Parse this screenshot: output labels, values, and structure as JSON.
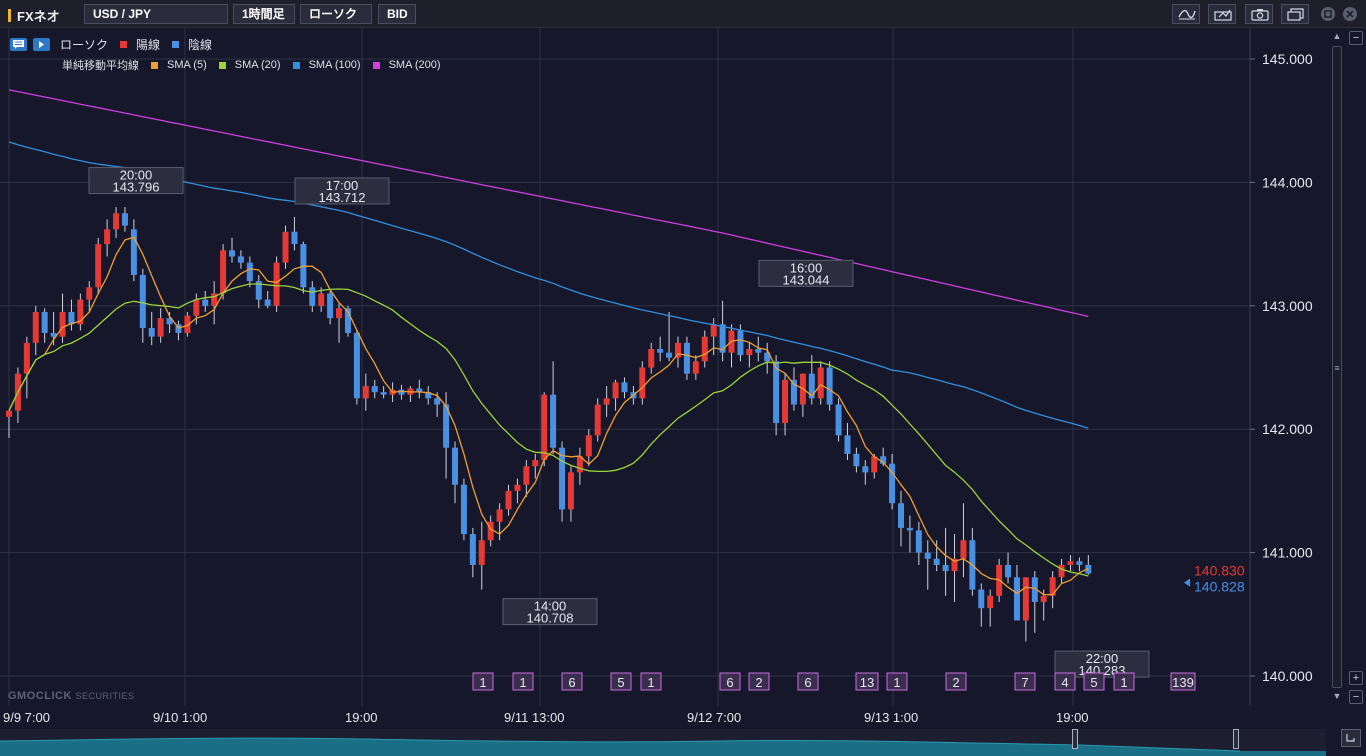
{
  "topbar": {
    "brand": "FXネオ",
    "pair": "USD / JPY",
    "timeframe": "1時間足",
    "chart_type": "ローソク",
    "price_type": "BID"
  },
  "legend": {
    "candle": "ローソク",
    "up": "陽線",
    "down": "陰線",
    "sma_group": "単純移動平均線",
    "sma": [
      {
        "label": "SMA (5)",
        "color": "#f0a030"
      },
      {
        "label": "SMA (20)",
        "color": "#9cd23a"
      },
      {
        "label": "SMA (100)",
        "color": "#2f8fe0"
      },
      {
        "label": "SMA (200)",
        "color": "#d23ce0"
      }
    ],
    "up_color": "#e53935",
    "down_color": "#4a90e2"
  },
  "watermark": {
    "brand": "GMOCLICK",
    "suffix": "SECURITIES"
  },
  "chart_data": {
    "type": "candlestick",
    "pair": "USD/JPY",
    "ylim": [
      139.75,
      145.25
    ],
    "yticks": [
      "145.000",
      "144.000",
      "143.000",
      "142.000",
      "141.000",
      "140.000"
    ],
    "xticks": [
      "9/9 7:00",
      "9/10 1:00",
      "19:00",
      "9/11 13:00",
      "9/12 7:00",
      "9/13 1:00",
      "19:00"
    ],
    "annotations": [
      {
        "time": "20:00",
        "price": "143.796"
      },
      {
        "time": "17:00",
        "price": "143.712"
      },
      {
        "time": "16:00",
        "price": "143.044"
      },
      {
        "time": "14:00",
        "price": "140.708"
      },
      {
        "time": "22:00",
        "price": "140.283"
      }
    ],
    "last_ask": "140.830",
    "last_bid": "140.828",
    "events": [
      "1",
      "1",
      "6",
      "5",
      "1",
      "6",
      "2",
      "6",
      "13",
      "1",
      "2",
      "7",
      "4",
      "5",
      "1",
      "139"
    ],
    "candles": [
      [
        142.1,
        142.15,
        141.93,
        142.15
      ],
      [
        142.15,
        142.5,
        142.05,
        142.45
      ],
      [
        142.45,
        142.75,
        142.25,
        142.7
      ],
      [
        142.7,
        143.0,
        142.6,
        142.95
      ],
      [
        142.95,
        142.98,
        142.7,
        142.78
      ],
      [
        142.78,
        142.95,
        142.68,
        142.75
      ],
      [
        142.75,
        143.1,
        142.7,
        142.95
      ],
      [
        142.95,
        143.05,
        142.8,
        142.85
      ],
      [
        142.85,
        143.1,
        142.8,
        143.05
      ],
      [
        143.05,
        143.2,
        142.95,
        143.15
      ],
      [
        143.15,
        143.55,
        143.1,
        143.5
      ],
      [
        143.5,
        143.7,
        143.4,
        143.62
      ],
      [
        143.62,
        143.8,
        143.55,
        143.75
      ],
      [
        143.75,
        143.8,
        143.6,
        143.65
      ],
      [
        143.62,
        143.7,
        143.2,
        143.25
      ],
      [
        143.25,
        143.3,
        142.7,
        142.82
      ],
      [
        142.82,
        142.95,
        142.68,
        142.75
      ],
      [
        142.75,
        142.98,
        142.7,
        142.9
      ],
      [
        142.9,
        142.95,
        142.78,
        142.85
      ],
      [
        142.85,
        142.88,
        142.72,
        142.78
      ],
      [
        142.78,
        142.95,
        142.75,
        142.92
      ],
      [
        142.92,
        143.1,
        142.85,
        143.05
      ],
      [
        143.05,
        143.12,
        142.95,
        143.0
      ],
      [
        143.0,
        143.2,
        142.85,
        143.1
      ],
      [
        143.1,
        143.5,
        143.05,
        143.45
      ],
      [
        143.45,
        143.55,
        143.35,
        143.4
      ],
      [
        143.4,
        143.45,
        143.3,
        143.35
      ],
      [
        143.35,
        143.4,
        143.15,
        143.2
      ],
      [
        143.2,
        143.25,
        142.98,
        143.05
      ],
      [
        143.05,
        143.12,
        142.98,
        143.0
      ],
      [
        143.0,
        143.4,
        142.95,
        143.35
      ],
      [
        143.35,
        143.65,
        143.3,
        143.6
      ],
      [
        143.6,
        143.72,
        143.45,
        143.5
      ],
      [
        143.5,
        143.52,
        143.1,
        143.15
      ],
      [
        143.15,
        143.2,
        142.95,
        143.0
      ],
      [
        143.0,
        143.15,
        142.95,
        143.1
      ],
      [
        143.1,
        143.12,
        142.85,
        142.9
      ],
      [
        142.9,
        143.02,
        142.7,
        142.98
      ],
      [
        142.98,
        143.0,
        142.75,
        142.78
      ],
      [
        142.78,
        142.8,
        142.2,
        142.25
      ],
      [
        142.25,
        142.45,
        142.15,
        142.35
      ],
      [
        142.35,
        142.4,
        142.25,
        142.3
      ],
      [
        142.3,
        142.35,
        142.25,
        142.28
      ],
      [
        142.28,
        142.38,
        142.22,
        142.32
      ],
      [
        142.32,
        142.36,
        142.24,
        142.28
      ],
      [
        142.28,
        142.35,
        142.22,
        142.33
      ],
      [
        142.33,
        142.4,
        142.25,
        142.3
      ],
      [
        142.3,
        142.35,
        142.2,
        142.25
      ],
      [
        142.25,
        142.3,
        142.1,
        142.2
      ],
      [
        142.2,
        142.3,
        141.6,
        141.85
      ],
      [
        141.85,
        141.9,
        141.4,
        141.55
      ],
      [
        141.55,
        141.6,
        141.1,
        141.15
      ],
      [
        141.15,
        141.2,
        140.8,
        140.9
      ],
      [
        140.9,
        141.25,
        140.7,
        141.1
      ],
      [
        141.1,
        141.3,
        141.05,
        141.25
      ],
      [
        141.25,
        141.4,
        141.1,
        141.35
      ],
      [
        141.35,
        141.55,
        141.3,
        141.5
      ],
      [
        141.5,
        141.6,
        141.4,
        141.55
      ],
      [
        141.55,
        141.75,
        141.45,
        141.7
      ],
      [
        141.7,
        141.8,
        141.6,
        141.75
      ],
      [
        141.75,
        142.3,
        141.7,
        142.28
      ],
      [
        142.28,
        142.55,
        141.8,
        141.85
      ],
      [
        141.85,
        141.9,
        141.25,
        141.35
      ],
      [
        141.35,
        141.7,
        141.25,
        141.65
      ],
      [
        141.65,
        141.85,
        141.55,
        141.78
      ],
      [
        141.78,
        142.0,
        141.7,
        141.95
      ],
      [
        141.95,
        142.25,
        141.9,
        142.2
      ],
      [
        142.2,
        142.35,
        142.1,
        142.25
      ],
      [
        142.25,
        142.4,
        142.15,
        142.38
      ],
      [
        142.38,
        142.42,
        142.25,
        142.3
      ],
      [
        142.3,
        142.35,
        142.2,
        142.25
      ],
      [
        142.25,
        142.55,
        142.2,
        142.5
      ],
      [
        142.5,
        142.7,
        142.45,
        142.65
      ],
      [
        142.65,
        142.75,
        142.55,
        142.62
      ],
      [
        142.62,
        142.95,
        142.55,
        142.58
      ],
      [
        142.58,
        142.75,
        142.5,
        142.7
      ],
      [
        142.7,
        142.75,
        142.4,
        142.45
      ],
      [
        142.45,
        142.6,
        142.4,
        142.55
      ],
      [
        142.55,
        142.8,
        142.5,
        142.75
      ],
      [
        142.75,
        142.9,
        142.6,
        142.85
      ],
      [
        142.85,
        143.04,
        142.55,
        142.62
      ],
      [
        142.62,
        142.85,
        142.5,
        142.8
      ],
      [
        142.8,
        142.85,
        142.55,
        142.6
      ],
      [
        142.6,
        142.7,
        142.5,
        142.65
      ],
      [
        142.65,
        142.75,
        142.55,
        142.62
      ],
      [
        142.62,
        142.7,
        142.45,
        142.55
      ],
      [
        142.55,
        142.6,
        141.95,
        142.05
      ],
      [
        142.05,
        142.45,
        141.95,
        142.4
      ],
      [
        142.4,
        142.5,
        142.15,
        142.2
      ],
      [
        142.2,
        142.45,
        142.1,
        142.45
      ],
      [
        142.45,
        142.6,
        142.2,
        142.25
      ],
      [
        142.25,
        142.55,
        142.2,
        142.5
      ],
      [
        142.5,
        142.55,
        142.15,
        142.2
      ],
      [
        142.2,
        142.25,
        141.9,
        141.95
      ],
      [
        141.95,
        142.05,
        141.75,
        141.8
      ],
      [
        141.8,
        141.85,
        141.65,
        141.7
      ],
      [
        141.7,
        141.75,
        141.55,
        141.65
      ],
      [
        141.65,
        141.8,
        141.6,
        141.78
      ],
      [
        141.78,
        141.85,
        141.7,
        141.72
      ],
      [
        141.72,
        141.8,
        141.35,
        141.4
      ],
      [
        141.4,
        141.5,
        141.05,
        141.2
      ],
      [
        141.2,
        141.3,
        141.0,
        141.18
      ],
      [
        141.18,
        141.25,
        140.9,
        141.0
      ],
      [
        141.0,
        141.1,
        140.7,
        140.95
      ],
      [
        140.95,
        141.1,
        140.85,
        140.9
      ],
      [
        140.9,
        141.2,
        140.65,
        140.85
      ],
      [
        140.85,
        141.15,
        140.6,
        140.95
      ],
      [
        140.95,
        141.4,
        140.8,
        141.1
      ],
      [
        141.1,
        141.2,
        140.65,
        140.7
      ],
      [
        140.7,
        140.75,
        140.4,
        140.55
      ],
      [
        140.55,
        140.7,
        140.4,
        140.65
      ],
      [
        140.65,
        140.95,
        140.6,
        140.9
      ],
      [
        140.9,
        141.0,
        140.75,
        140.8
      ],
      [
        140.8,
        140.9,
        140.45,
        140.45
      ],
      [
        140.45,
        140.8,
        140.28,
        140.8
      ],
      [
        140.8,
        140.85,
        140.35,
        140.6
      ],
      [
        140.6,
        140.7,
        140.45,
        140.65
      ],
      [
        140.65,
        140.85,
        140.55,
        140.8
      ],
      [
        140.8,
        140.95,
        140.75,
        140.9
      ],
      [
        140.9,
        140.98,
        140.85,
        140.93
      ],
      [
        140.93,
        140.96,
        140.85,
        140.9
      ],
      [
        140.9,
        140.98,
        140.82,
        140.83
      ]
    ]
  }
}
